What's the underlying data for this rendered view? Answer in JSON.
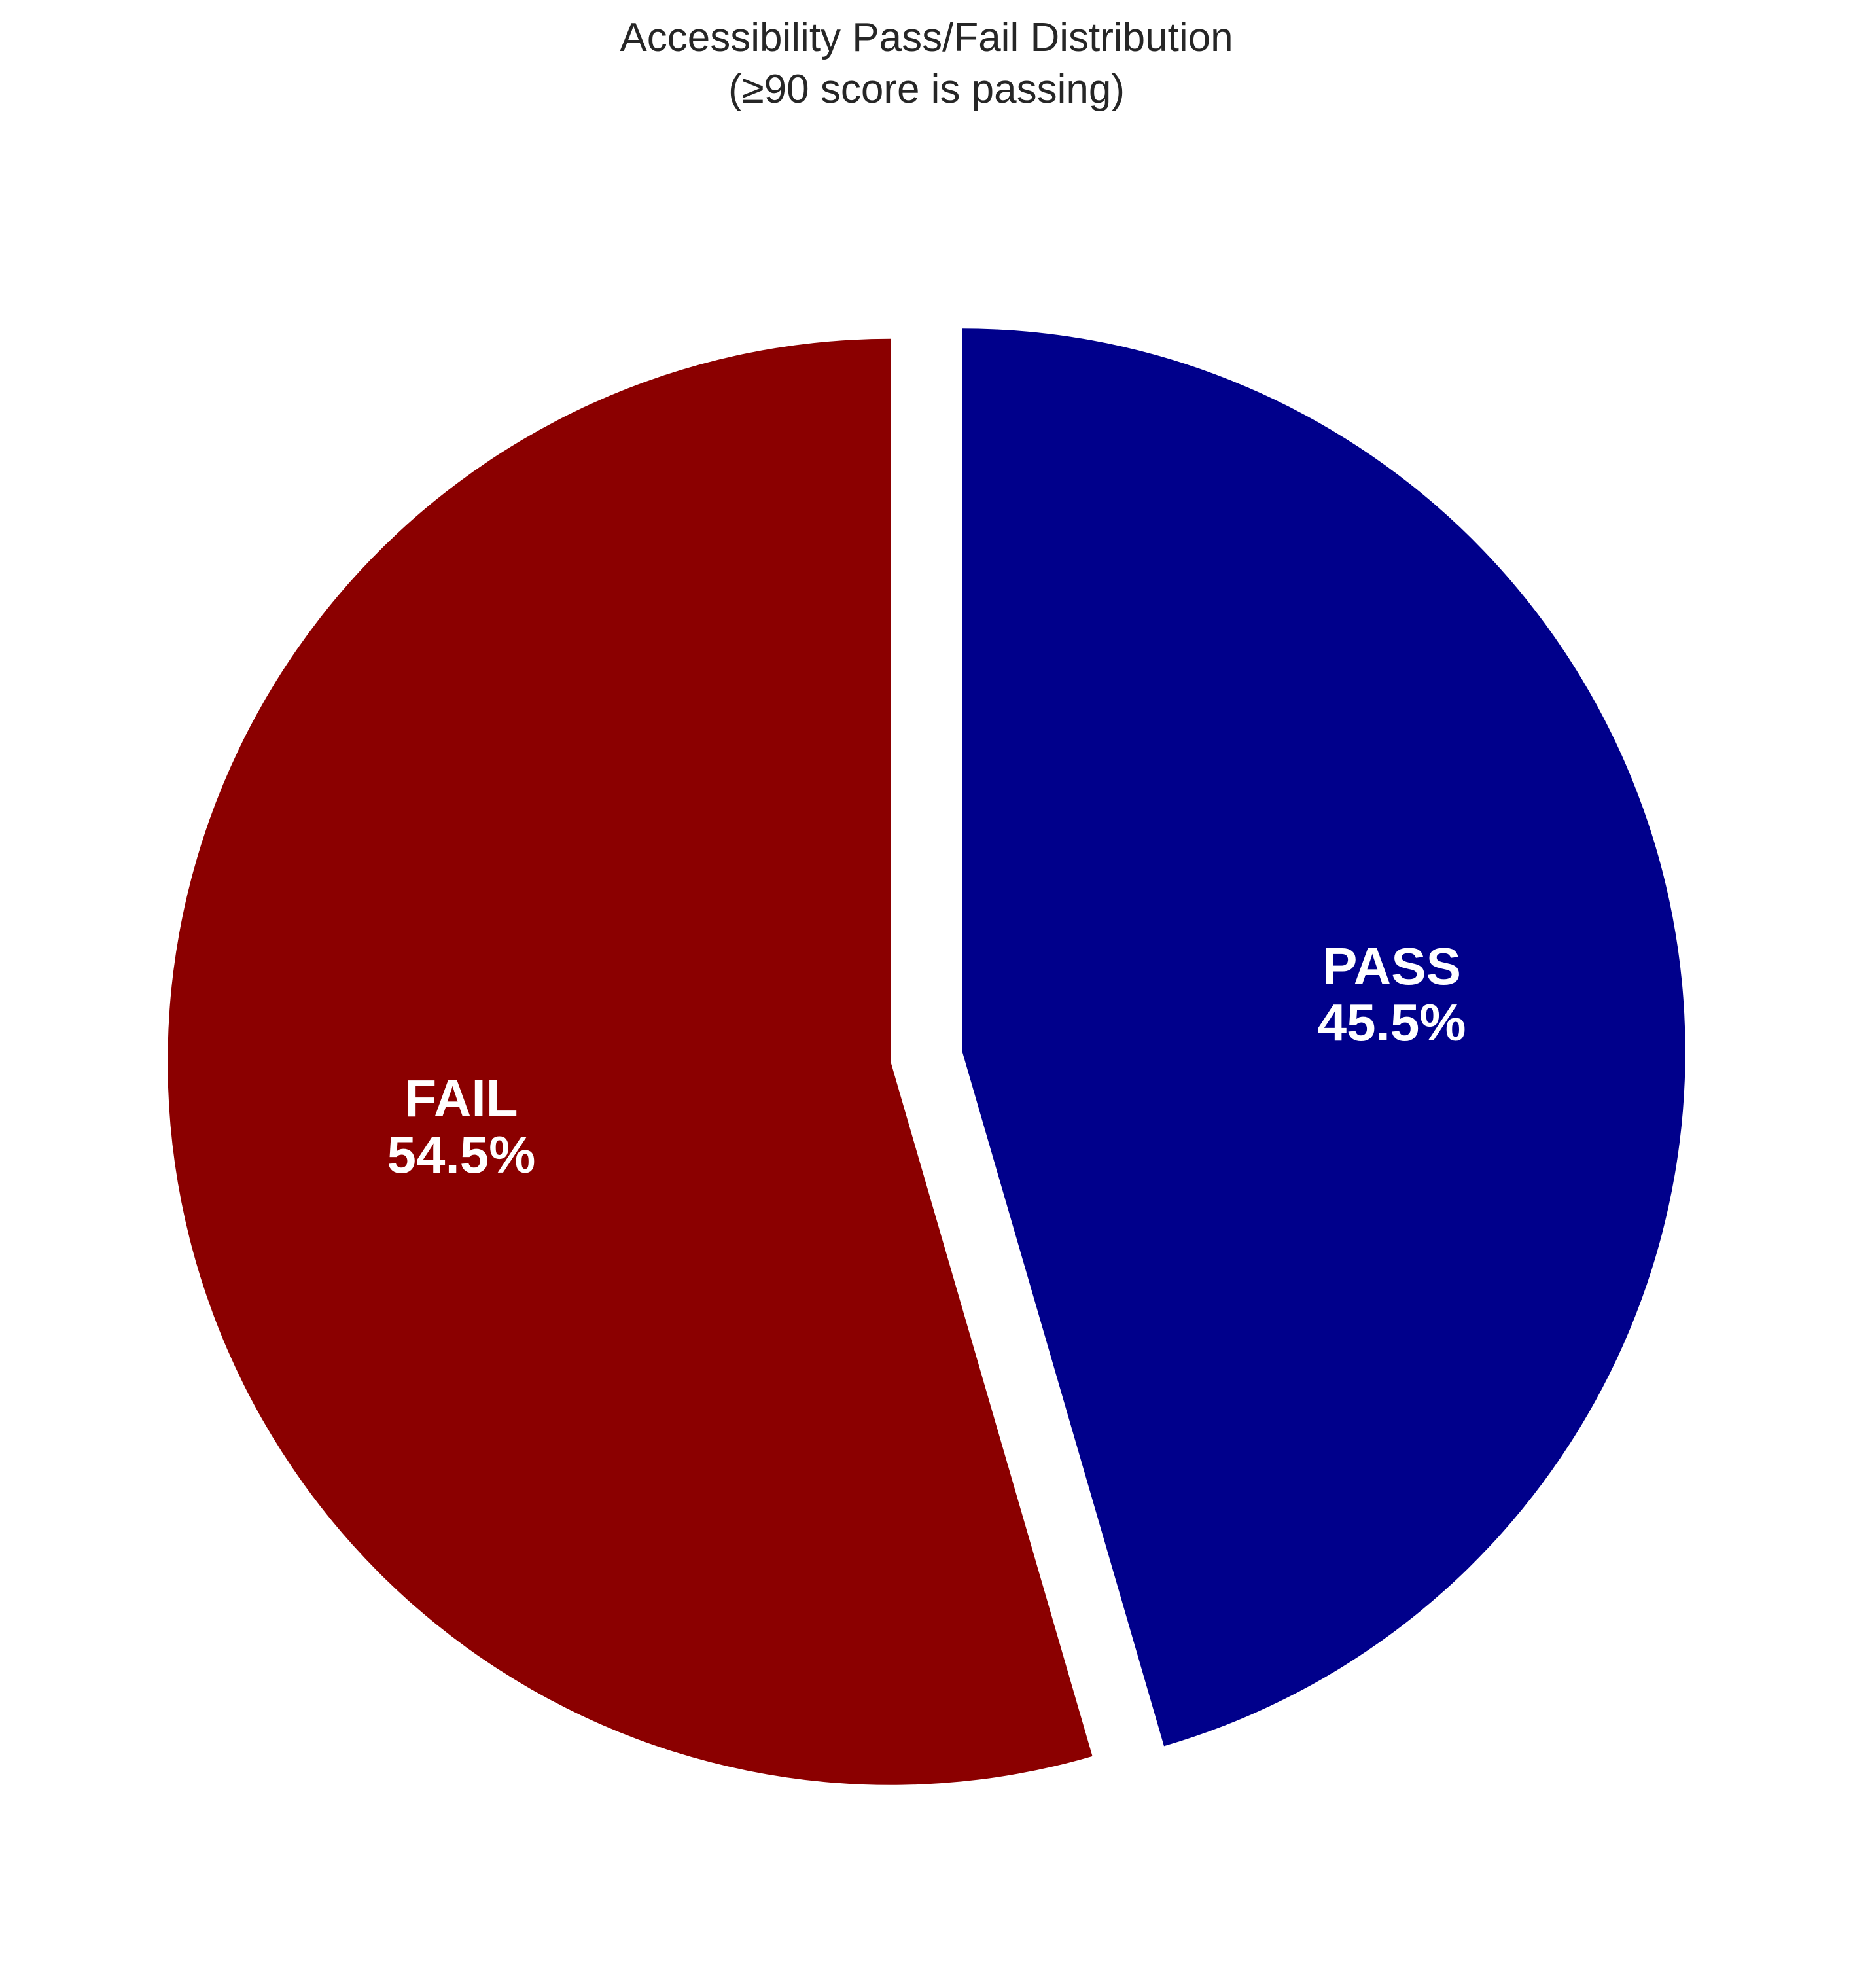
{
  "chart_data": {
    "type": "pie",
    "title": "Accessibility Pass/Fail Distribution",
    "subtitle": "(≥90 score is passing)",
    "slices": [
      {
        "label": "PASS",
        "value": 45.5,
        "value_label": "45.5%",
        "color": "#00008b",
        "exploded": true
      },
      {
        "label": "FAIL",
        "value": 54.5,
        "value_label": "54.5%",
        "color": "#8b0000",
        "exploded": true
      }
    ],
    "start_angle": "top (12 o'clock), clockwise",
    "legend": "none"
  }
}
